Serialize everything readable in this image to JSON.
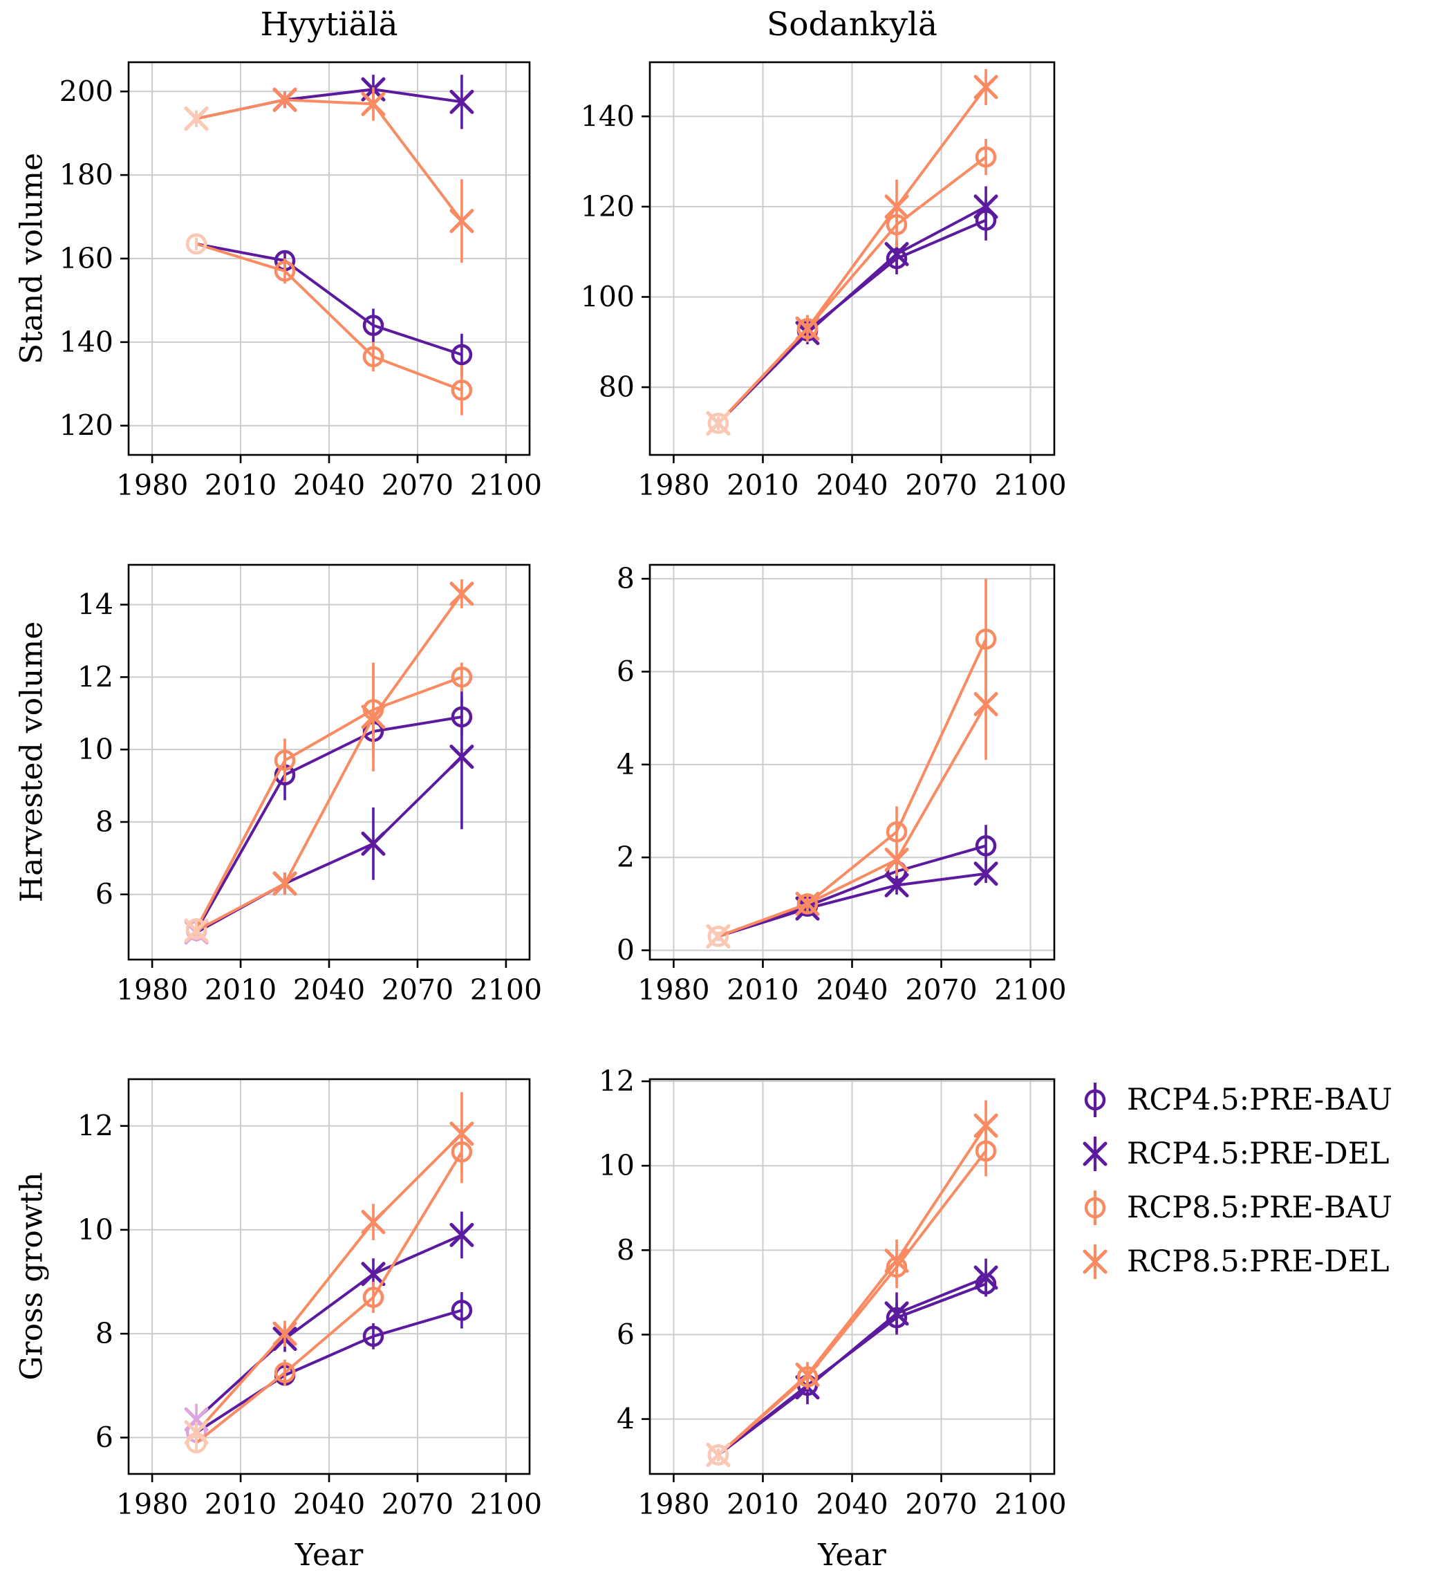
{
  "chart_data": {
    "type": "line",
    "columns": [
      "Hyytiälä",
      "Sodankylä"
    ],
    "rows": [
      "Stand volume",
      "Harvested volume",
      "Gross growth"
    ],
    "xlabel": "Year",
    "x": [
      1995,
      2025,
      2055,
      2085
    ],
    "x_ticks": [
      1980,
      2010,
      2040,
      2070,
      2100
    ],
    "xlim": [
      1972,
      2108
    ],
    "grid_color": "#cccccc",
    "legend_position": "right of bottom-right panel",
    "series_meta": [
      {
        "name": "RCP4.5:PRE-BAU",
        "color": "#5c1a9e",
        "light_color": "#dda4e0",
        "marker": "circle"
      },
      {
        "name": "RCP4.5:PRE-DEL",
        "color": "#5c1a9e",
        "light_color": "#dda4e0",
        "marker": "x"
      },
      {
        "name": "RCP8.5:PRE-BAU",
        "color": "#f98a61",
        "light_color": "#fcc8b2",
        "marker": "circle"
      },
      {
        "name": "RCP8.5:PRE-DEL",
        "color": "#f98a61",
        "light_color": "#fcc8b2",
        "marker": "x"
      }
    ],
    "panels": [
      {
        "col": "Hyytiälä",
        "row": "Stand volume",
        "ylim": [
          113,
          207
        ],
        "yticks": [
          120,
          140,
          160,
          180,
          200
        ],
        "series": [
          {
            "name": "RCP4.5:PRE-BAU",
            "y": [
              163.5,
              159.5,
              144.0,
              137.0
            ],
            "err": [
              1.5,
              2.5,
              4.0,
              5.0
            ]
          },
          {
            "name": "RCP4.5:PRE-DEL",
            "y": [
              193.5,
              198.0,
              200.5,
              197.5
            ],
            "err": [
              2.0,
              2.0,
              3.5,
              6.5
            ]
          },
          {
            "name": "RCP8.5:PRE-BAU",
            "y": [
              163.5,
              157.0,
              136.5,
              128.5
            ],
            "err": [
              1.5,
              3.0,
              3.5,
              6.0
            ]
          },
          {
            "name": "RCP8.5:PRE-DEL",
            "y": [
              193.5,
              198.0,
              197.0,
              169.0
            ],
            "err": [
              2.0,
              2.0,
              4.0,
              10.0
            ]
          }
        ]
      },
      {
        "col": "Sodankylä",
        "row": "Stand volume",
        "ylim": [
          65,
          152
        ],
        "yticks": [
          80,
          100,
          120,
          140
        ],
        "series": [
          {
            "name": "RCP4.5:PRE-BAU",
            "y": [
              72.0,
              92.5,
              108.5,
              117.0
            ],
            "err": [
              1.5,
              2.0,
              3.5,
              4.5
            ]
          },
          {
            "name": "RCP4.5:PRE-DEL",
            "y": [
              72.0,
              92.0,
              109.5,
              120.0
            ],
            "err": [
              1.5,
              2.5,
              3.0,
              4.5
            ]
          },
          {
            "name": "RCP8.5:PRE-BAU",
            "y": [
              72.0,
              93.0,
              116.0,
              131.0
            ],
            "err": [
              1.5,
              3.0,
              5.0,
              4.0
            ]
          },
          {
            "name": "RCP8.5:PRE-DEL",
            "y": [
              72.0,
              93.0,
              120.0,
              146.5
            ],
            "err": [
              1.5,
              3.0,
              6.0,
              4.0
            ]
          }
        ]
      },
      {
        "col": "Hyytiälä",
        "row": "Harvested volume",
        "ylim": [
          4.2,
          15.1
        ],
        "yticks": [
          6,
          8,
          10,
          12,
          14
        ],
        "series": [
          {
            "name": "RCP4.5:PRE-BAU",
            "y": [
              5.0,
              9.3,
              10.5,
              10.9
            ],
            "err": [
              0.3,
              0.7,
              0.5,
              0.5
            ]
          },
          {
            "name": "RCP4.5:PRE-DEL",
            "y": [
              4.95,
              6.3,
              7.4,
              9.8
            ],
            "err": [
              0.25,
              0.3,
              1.0,
              2.0
            ]
          },
          {
            "name": "RCP8.5:PRE-BAU",
            "y": [
              5.05,
              9.7,
              11.1,
              12.0
            ],
            "err": [
              0.3,
              0.6,
              1.3,
              0.4
            ]
          },
          {
            "name": "RCP8.5:PRE-DEL",
            "y": [
              5.0,
              6.3,
              10.9,
              14.3
            ],
            "err": [
              0.25,
              0.3,
              1.5,
              0.4
            ]
          }
        ]
      },
      {
        "col": "Sodankylä",
        "row": "Harvested volume",
        "ylim": [
          -0.2,
          8.3
        ],
        "yticks": [
          0,
          2,
          4,
          6,
          8
        ],
        "series": [
          {
            "name": "RCP4.5:PRE-BAU",
            "y": [
              0.3,
              0.95,
              1.7,
              2.25
            ],
            "err": [
              0.1,
              0.15,
              0.25,
              0.45
            ]
          },
          {
            "name": "RCP4.5:PRE-DEL",
            "y": [
              0.3,
              0.9,
              1.4,
              1.65
            ],
            "err": [
              0.1,
              0.15,
              0.2,
              0.2
            ]
          },
          {
            "name": "RCP8.5:PRE-BAU",
            "y": [
              0.3,
              1.0,
              2.55,
              6.7
            ],
            "err": [
              0.1,
              0.2,
              0.55,
              1.3
            ]
          },
          {
            "name": "RCP8.5:PRE-DEL",
            "y": [
              0.3,
              1.0,
              1.95,
              5.3
            ],
            "err": [
              0.1,
              0.2,
              0.35,
              1.2
            ]
          }
        ]
      },
      {
        "col": "Hyytiälä",
        "row": "Gross growth",
        "ylim": [
          5.3,
          12.9
        ],
        "yticks": [
          6,
          8,
          10,
          12
        ],
        "series": [
          {
            "name": "RCP4.5:PRE-BAU",
            "y": [
              6.1,
              7.2,
              7.95,
              8.45
            ],
            "err": [
              0.25,
              0.2,
              0.25,
              0.35
            ]
          },
          {
            "name": "RCP4.5:PRE-DEL",
            "y": [
              6.35,
              7.9,
              9.15,
              9.9
            ],
            "err": [
              0.3,
              0.25,
              0.3,
              0.45
            ]
          },
          {
            "name": "RCP8.5:PRE-BAU",
            "y": [
              5.9,
              7.25,
              8.7,
              11.5
            ],
            "err": [
              0.2,
              0.25,
              0.3,
              0.6
            ]
          },
          {
            "name": "RCP8.5:PRE-DEL",
            "y": [
              6.1,
              8.0,
              10.15,
              11.85
            ],
            "err": [
              0.2,
              0.25,
              0.35,
              0.8
            ]
          }
        ]
      },
      {
        "col": "Sodankylä",
        "row": "Gross growth",
        "ylim": [
          2.7,
          12.05
        ],
        "yticks": [
          4,
          6,
          8,
          10,
          12
        ],
        "series": [
          {
            "name": "RCP4.5:PRE-BAU",
            "y": [
              3.15,
              4.8,
              6.4,
              7.2
            ],
            "err": [
              0.15,
              0.3,
              0.35,
              0.3
            ]
          },
          {
            "name": "RCP4.5:PRE-DEL",
            "y": [
              3.15,
              4.75,
              6.5,
              7.35
            ],
            "err": [
              0.15,
              0.4,
              0.5,
              0.45
            ]
          },
          {
            "name": "RCP8.5:PRE-BAU",
            "y": [
              3.15,
              5.0,
              7.6,
              10.35
            ],
            "err": [
              0.15,
              0.3,
              0.5,
              0.6
            ]
          },
          {
            "name": "RCP8.5:PRE-DEL",
            "y": [
              3.15,
              5.05,
              7.75,
              10.95
            ],
            "err": [
              0.15,
              0.3,
              0.5,
              0.6
            ]
          }
        ]
      }
    ]
  }
}
